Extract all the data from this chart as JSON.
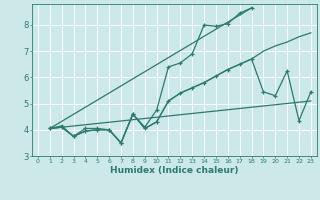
{
  "title": "",
  "xlabel": "Humidex (Indice chaleur)",
  "ylabel": "",
  "bg_color": "#cce8e8",
  "line_color": "#2d7a6e",
  "grid_color": "#ffffff",
  "xlim": [
    -0.5,
    23.5
  ],
  "ylim": [
    3.0,
    8.8
  ],
  "yticks": [
    3,
    4,
    5,
    6,
    7,
    8
  ],
  "xticks": [
    0,
    1,
    2,
    3,
    4,
    5,
    6,
    7,
    8,
    9,
    10,
    11,
    12,
    13,
    14,
    15,
    16,
    17,
    18,
    19,
    20,
    21,
    22,
    23
  ],
  "line1_x": [
    1,
    2,
    3,
    4,
    5,
    6,
    7,
    8,
    9,
    10,
    11,
    12,
    13,
    14,
    15,
    16,
    17,
    18
  ],
  "line1_y": [
    4.05,
    4.15,
    3.75,
    4.05,
    4.05,
    4.0,
    3.5,
    4.6,
    4.1,
    4.75,
    6.4,
    6.55,
    6.9,
    8.0,
    7.95,
    8.05,
    8.45,
    8.65
  ],
  "line2_x": [
    1,
    2,
    3,
    4,
    5,
    6,
    7,
    8,
    9,
    10,
    11,
    12,
    13,
    14,
    15,
    16,
    17,
    18,
    19,
    20,
    21,
    22,
    23
  ],
  "line2_y": [
    4.05,
    4.1,
    3.75,
    3.95,
    4.0,
    4.0,
    3.5,
    4.6,
    4.05,
    4.3,
    5.1,
    5.4,
    5.6,
    5.8,
    6.05,
    6.3,
    6.5,
    6.7,
    7.0,
    7.2,
    7.35,
    7.55,
    7.7
  ],
  "line3_x": [
    1,
    2,
    3,
    4,
    5,
    6,
    7,
    8,
    9,
    10,
    11,
    12,
    13,
    14,
    15,
    16,
    17,
    18,
    19,
    20,
    21,
    22,
    23
  ],
  "line3_y": [
    4.05,
    4.1,
    3.75,
    3.95,
    4.0,
    4.0,
    3.5,
    4.6,
    4.05,
    4.3,
    5.1,
    5.4,
    5.6,
    5.8,
    6.05,
    6.3,
    6.5,
    6.7,
    5.45,
    5.3,
    6.25,
    4.35,
    5.45
  ],
  "line4_x": [
    1,
    18
  ],
  "line4_y": [
    4.05,
    8.65
  ],
  "line5_x": [
    1,
    23
  ],
  "line5_y": [
    4.05,
    5.1
  ]
}
